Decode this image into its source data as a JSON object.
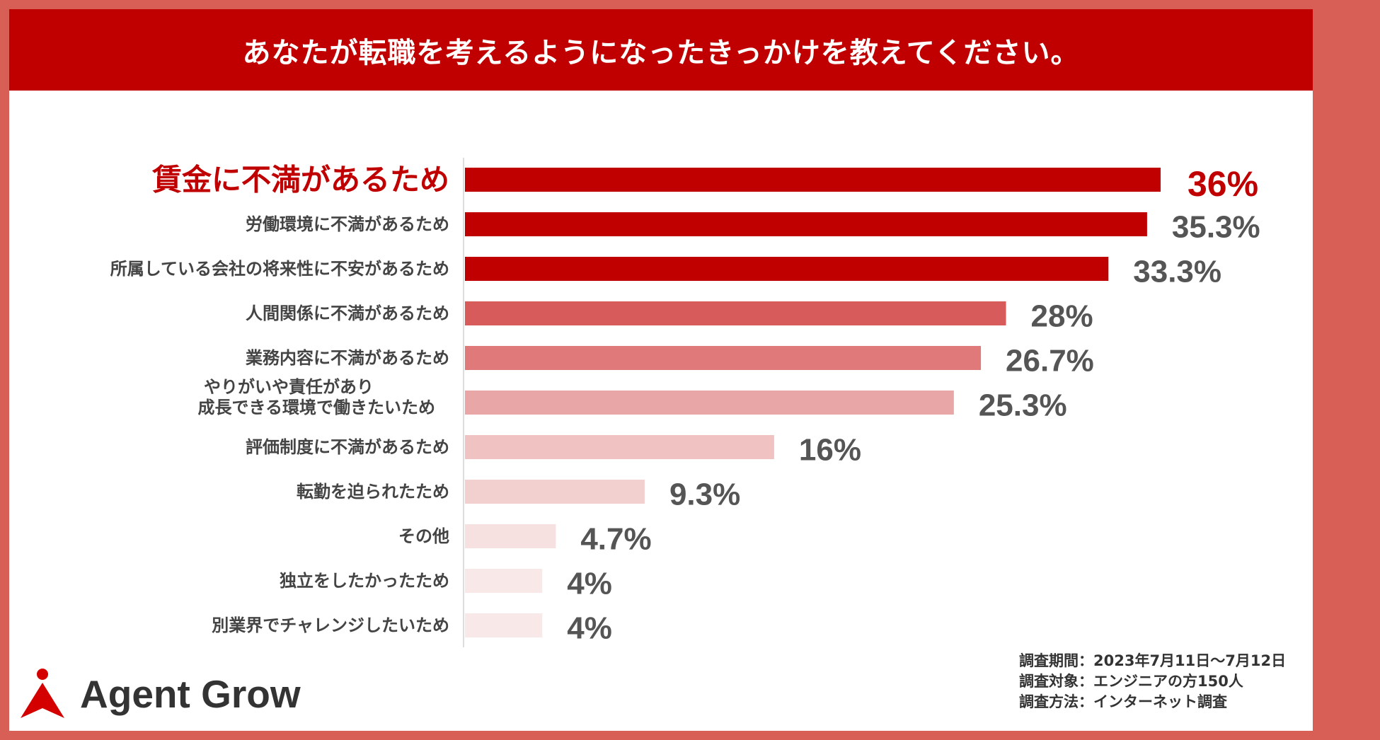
{
  "title": "あなたが転職を考えるようになったきっかけを教えてください。",
  "brand": {
    "name": "Agent Grow",
    "logo_icon": "person-arrow-icon",
    "accent": "#d40000"
  },
  "survey": {
    "period": "調査期間：2023年7月11日〜7月12日",
    "target": "調査対象：エンジニアの方150人",
    "method": "調査方法：インターネット調査"
  },
  "chart_data": {
    "type": "bar",
    "orientation": "horizontal",
    "unit": "%",
    "xlim": [
      0,
      36
    ],
    "grid": false,
    "categories": [
      "賃金に不満があるため",
      "労働環境に不満があるため",
      "所属している会社の将来性に不安があるため",
      "人間関係に不満があるため",
      "業務内容に不満があるため",
      "やりがいや責任があり\n成長できる環境で働きたいため",
      "評価制度に不満があるため",
      "転勤を迫られたため",
      "その他",
      "独立をしたかったため",
      "別業界でチャレンジしたいため"
    ],
    "values": [
      36,
      35.3,
      33.3,
      28,
      26.7,
      25.3,
      16,
      9.3,
      4.7,
      4,
      4
    ],
    "value_labels": [
      "36%",
      "35.3%",
      "33.3%",
      "28%",
      "26.7%",
      "25.3%",
      "16%",
      "9.3%",
      "4.7%",
      "4%",
      "4%"
    ],
    "bar_colors": [
      "#c00000",
      "#c00000",
      "#c00000",
      "#d75b5b",
      "#e07a7a",
      "#e9a6a6",
      "#f0c2c2",
      "#f3d0d0",
      "#f7e0e0",
      "#f9e8e8",
      "#f9e8e8"
    ],
    "highlight_index": 0,
    "highlight_color": "#c00000",
    "label_color": "#444444",
    "value_color": "#555555"
  }
}
